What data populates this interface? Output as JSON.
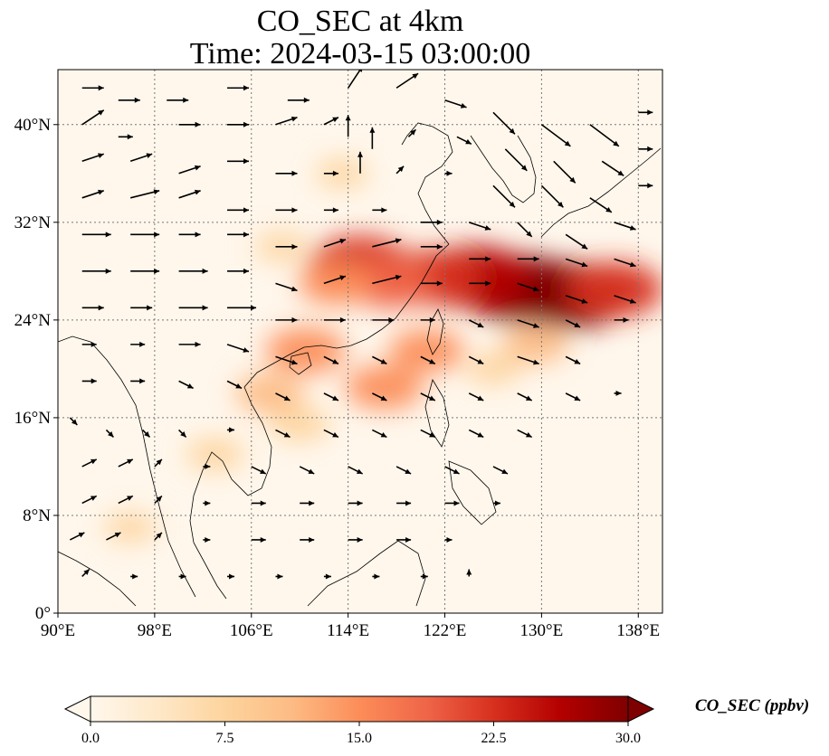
{
  "title": {
    "line1": "CO_SEC at 4km",
    "line2": "Time: 2024-03-15 03:00:00"
  },
  "map": {
    "lon_range": [
      90,
      140
    ],
    "lat_range": [
      0,
      44.5
    ],
    "lon_ticks": [
      "90°E",
      "98°E",
      "106°E",
      "114°E",
      "122°E",
      "130°E",
      "138°E"
    ],
    "lon_tick_values": [
      90,
      98,
      106,
      114,
      122,
      130,
      138
    ],
    "lat_ticks": [
      "0°",
      "8°N",
      "16°N",
      "24°N",
      "32°N",
      "40°N"
    ],
    "lat_tick_values": [
      0,
      8,
      16,
      24,
      32,
      40
    ],
    "gridlines": true,
    "gridline_style": "dotted",
    "coastlines": true
  },
  "colorbar": {
    "label": "CO_SEC (ppbv)",
    "ticks": [
      "0.0",
      "7.5",
      "15.0",
      "22.5",
      "30.0"
    ],
    "tick_values": [
      0,
      7.5,
      15,
      22.5,
      30
    ],
    "range": [
      0,
      30
    ],
    "extend": "both",
    "colormap": "OrRd",
    "colors": [
      "#fff7ec",
      "#fee8c8",
      "#fdd49e",
      "#fdbb84",
      "#fc8d59",
      "#ef6548",
      "#d7301f",
      "#b30000",
      "#7f0000"
    ]
  },
  "plumes": [
    {
      "lon": 128.5,
      "lat": 26.5,
      "value": 30
    },
    {
      "lon": 132.5,
      "lat": 26.0,
      "value": 29
    },
    {
      "lon": 124.5,
      "lat": 27.5,
      "value": 27
    },
    {
      "lon": 136.0,
      "lat": 26.5,
      "value": 22
    },
    {
      "lon": 121.0,
      "lat": 27.5,
      "value": 22
    },
    {
      "lon": 115.0,
      "lat": 28.5,
      "value": 24
    },
    {
      "lon": 117.5,
      "lat": 27.0,
      "value": 18
    },
    {
      "lon": 113.0,
      "lat": 27.0,
      "value": 14
    },
    {
      "lon": 110.5,
      "lat": 21.5,
      "value": 16
    },
    {
      "lon": 107.5,
      "lat": 18.0,
      "value": 12
    },
    {
      "lon": 117.0,
      "lat": 18.5,
      "value": 15
    },
    {
      "lon": 120.5,
      "lat": 21.5,
      "value": 14
    },
    {
      "lon": 129.5,
      "lat": 22.0,
      "value": 11
    },
    {
      "lon": 110.0,
      "lat": 15.5,
      "value": 9
    },
    {
      "lon": 103.0,
      "lat": 13.0,
      "value": 8
    },
    {
      "lon": 113.5,
      "lat": 36.0,
      "value": 6
    },
    {
      "lon": 108.5,
      "lat": 30.0,
      "value": 6
    },
    {
      "lon": 96.0,
      "lat": 7.0,
      "value": 6
    },
    {
      "lon": 126.0,
      "lat": 20.0,
      "value": 7
    }
  ],
  "wind_arrows": [
    [
      92,
      43,
      3,
      0
    ],
    [
      95,
      42,
      3,
      0
    ],
    [
      99,
      42,
      3,
      0
    ],
    [
      104,
      43,
      3,
      0
    ],
    [
      109,
      42,
      3,
      0
    ],
    [
      114,
      43,
      2,
      3
    ],
    [
      118,
      43,
      3,
      2
    ],
    [
      122,
      42,
      3,
      -1
    ],
    [
      126,
      41,
      3,
      -3
    ],
    [
      130,
      40,
      4,
      -3
    ],
    [
      134,
      40,
      4,
      -3
    ],
    [
      138,
      41,
      2,
      0
    ],
    [
      92,
      40,
      3,
      2
    ],
    [
      95,
      39,
      2,
      0
    ],
    [
      100,
      40,
      3,
      0
    ],
    [
      104,
      40,
      3,
      0
    ],
    [
      108,
      40,
      3,
      1
    ],
    [
      112,
      40,
      2,
      1
    ],
    [
      114,
      39,
      0,
      3
    ],
    [
      116,
      38,
      0,
      3
    ],
    [
      119,
      39,
      1,
      1
    ],
    [
      123,
      39,
      2,
      -1
    ],
    [
      127,
      38,
      3,
      -3
    ],
    [
      131,
      37,
      3,
      -3
    ],
    [
      135,
      37,
      3,
      -2
    ],
    [
      138,
      38,
      2,
      0
    ],
    [
      92,
      37,
      3,
      1
    ],
    [
      96,
      37,
      3,
      1
    ],
    [
      100,
      36,
      3,
      1
    ],
    [
      104,
      37,
      3,
      0
    ],
    [
      108,
      36,
      3,
      0
    ],
    [
      112,
      36,
      2,
      0
    ],
    [
      115,
      36,
      0,
      3
    ],
    [
      118,
      36,
      1,
      1
    ],
    [
      122,
      36,
      1,
      0
    ],
    [
      126,
      35,
      3,
      -3
    ],
    [
      130,
      35,
      3,
      -3
    ],
    [
      134,
      34,
      3,
      -2
    ],
    [
      138,
      35,
      2,
      0
    ],
    [
      92,
      34,
      3,
      1
    ],
    [
      96,
      34,
      4,
      1
    ],
    [
      100,
      34,
      3,
      1
    ],
    [
      104,
      33,
      3,
      0
    ],
    [
      108,
      33,
      3,
      0
    ],
    [
      112,
      33,
      2,
      0
    ],
    [
      116,
      33,
      2,
      0
    ],
    [
      120,
      32,
      3,
      0
    ],
    [
      124,
      32,
      3,
      -1
    ],
    [
      128,
      32,
      2,
      -2
    ],
    [
      132,
      31,
      3,
      -2
    ],
    [
      136,
      32,
      3,
      -1
    ],
    [
      92,
      31,
      4,
      0
    ],
    [
      96,
      31,
      4,
      0
    ],
    [
      100,
      31,
      3,
      0
    ],
    [
      104,
      31,
      3,
      0
    ],
    [
      108,
      30,
      3,
      0
    ],
    [
      112,
      30,
      3,
      1
    ],
    [
      116,
      30,
      4,
      1
    ],
    [
      120,
      30,
      3,
      0
    ],
    [
      124,
      29,
      3,
      0
    ],
    [
      128,
      29,
      3,
      0
    ],
    [
      132,
      29,
      3,
      -1
    ],
    [
      136,
      29,
      3,
      -1
    ],
    [
      92,
      28,
      4,
      0
    ],
    [
      96,
      28,
      4,
      0
    ],
    [
      100,
      28,
      4,
      0
    ],
    [
      104,
      28,
      3,
      0
    ],
    [
      108,
      27,
      3,
      -1
    ],
    [
      112,
      27,
      3,
      1
    ],
    [
      116,
      27,
      4,
      1
    ],
    [
      120,
      27,
      3,
      0
    ],
    [
      124,
      27,
      3,
      0
    ],
    [
      128,
      27,
      3,
      -1
    ],
    [
      132,
      26,
      3,
      -1
    ],
    [
      136,
      26,
      3,
      -1
    ],
    [
      92,
      25,
      3,
      0
    ],
    [
      96,
      25,
      3,
      0
    ],
    [
      100,
      25,
      4,
      0
    ],
    [
      104,
      25,
      4,
      0
    ],
    [
      108,
      24,
      3,
      0
    ],
    [
      112,
      24,
      3,
      0
    ],
    [
      116,
      24,
      3,
      0
    ],
    [
      120,
      24,
      2,
      0
    ],
    [
      124,
      24,
      2,
      -1
    ],
    [
      128,
      24,
      3,
      -1
    ],
    [
      132,
      24,
      2,
      -1
    ],
    [
      136,
      24,
      2,
      0
    ],
    [
      92,
      22,
      2,
      0
    ],
    [
      96,
      22,
      2,
      0
    ],
    [
      100,
      22,
      3,
      0
    ],
    [
      104,
      22,
      3,
      -1
    ],
    [
      108,
      21,
      3,
      -1
    ],
    [
      112,
      21,
      2,
      -1
    ],
    [
      116,
      21,
      2,
      -1
    ],
    [
      120,
      21,
      2,
      -1
    ],
    [
      124,
      21,
      2,
      -1
    ],
    [
      128,
      21,
      3,
      -1
    ],
    [
      132,
      21,
      2,
      -1
    ],
    [
      92,
      19,
      2,
      0
    ],
    [
      96,
      19,
      2,
      0
    ],
    [
      100,
      19,
      2,
      -1
    ],
    [
      104,
      19,
      2,
      -1
    ],
    [
      108,
      18,
      2,
      -1
    ],
    [
      112,
      18,
      2,
      -1
    ],
    [
      116,
      18,
      2,
      -1
    ],
    [
      120,
      18,
      2,
      -1
    ],
    [
      124,
      18,
      2,
      -1
    ],
    [
      128,
      18,
      2,
      -1
    ],
    [
      132,
      18,
      2,
      -1
    ],
    [
      136,
      18,
      1,
      0
    ],
    [
      91,
      16,
      1,
      -1
    ],
    [
      94,
      15,
      1,
      -1
    ],
    [
      97,
      15,
      1,
      -1
    ],
    [
      100,
      15,
      1,
      -1
    ],
    [
      104,
      15,
      1,
      0
    ],
    [
      108,
      15,
      2,
      -1
    ],
    [
      112,
      15,
      2,
      -1
    ],
    [
      116,
      15,
      2,
      -1
    ],
    [
      120,
      15,
      2,
      -1
    ],
    [
      124,
      15,
      2,
      -1
    ],
    [
      128,
      15,
      2,
      -1
    ],
    [
      92,
      12,
      2,
      1
    ],
    [
      95,
      12,
      2,
      1
    ],
    [
      98,
      12,
      1,
      1
    ],
    [
      102,
      12,
      1,
      0
    ],
    [
      106,
      12,
      2,
      -1
    ],
    [
      110,
      12,
      2,
      -1
    ],
    [
      114,
      12,
      2,
      -1
    ],
    [
      118,
      12,
      2,
      -1
    ],
    [
      122,
      12,
      2,
      -1
    ],
    [
      126,
      12,
      2,
      -1
    ],
    [
      92,
      9,
      2,
      1
    ],
    [
      95,
      9,
      2,
      1
    ],
    [
      98,
      9,
      1,
      1
    ],
    [
      102,
      9,
      1,
      0
    ],
    [
      106,
      9,
      2,
      0
    ],
    [
      110,
      9,
      2,
      0
    ],
    [
      114,
      9,
      2,
      0
    ],
    [
      118,
      9,
      2,
      0
    ],
    [
      122,
      9,
      2,
      0
    ],
    [
      126,
      9,
      1,
      0
    ],
    [
      91,
      6,
      2,
      1
    ],
    [
      94,
      6,
      2,
      1
    ],
    [
      98,
      6,
      1,
      1
    ],
    [
      102,
      6,
      1,
      0
    ],
    [
      106,
      6,
      2,
      0
    ],
    [
      110,
      6,
      2,
      0
    ],
    [
      114,
      6,
      2,
      0
    ],
    [
      118,
      6,
      2,
      0
    ],
    [
      122,
      6,
      1,
      0
    ],
    [
      92,
      3,
      1,
      1
    ],
    [
      96,
      3,
      1,
      0
    ],
    [
      100,
      3,
      1,
      0
    ],
    [
      104,
      3,
      1,
      0
    ],
    [
      108,
      3,
      1,
      0
    ],
    [
      112,
      3,
      1,
      0
    ],
    [
      116,
      3,
      1,
      0
    ],
    [
      120,
      3,
      1,
      0
    ],
    [
      124,
      3,
      0,
      1
    ]
  ]
}
